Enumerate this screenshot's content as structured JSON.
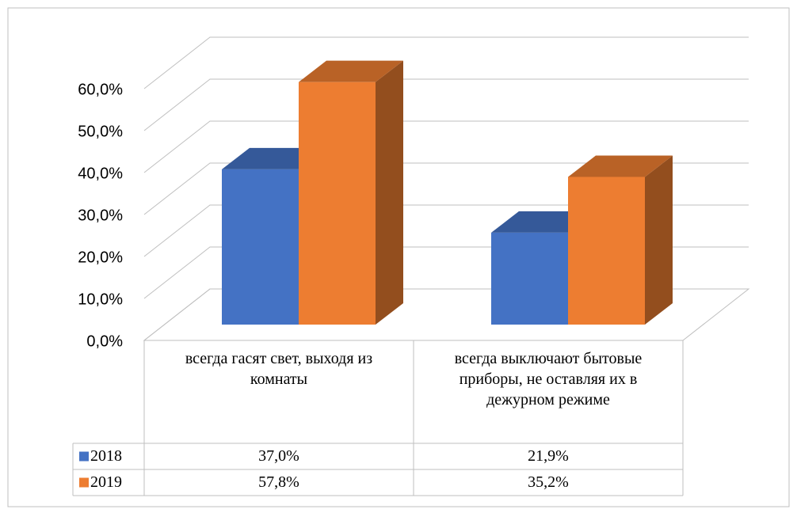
{
  "chart_data": {
    "type": "bar3d",
    "categories": [
      "всегда гасят свет, выходя из комнаты",
      "всегда выключают бытовые приборы, не оставляя их в дежурном режиме"
    ],
    "series": [
      {
        "name": "2018",
        "color": "#4472c4",
        "values": [
          37.0,
          21.9
        ],
        "value_labels": [
          "37,0%",
          "21,9%"
        ]
      },
      {
        "name": "2019",
        "color": "#ed7d31",
        "values": [
          57.8,
          35.2
        ],
        "value_labels": [
          "57,8%",
          "35,2%"
        ]
      }
    ],
    "ylim": [
      0,
      60
    ],
    "yticks": [
      {
        "value": 0,
        "label": "0,0%"
      },
      {
        "value": 10,
        "label": "10,0%"
      },
      {
        "value": 20,
        "label": "20,0%"
      },
      {
        "value": 30,
        "label": "30,0%"
      },
      {
        "value": 40,
        "label": "40,0%"
      },
      {
        "value": 50,
        "label": "50,0%"
      },
      {
        "value": 60,
        "label": "60,0%"
      }
    ],
    "grid": true
  }
}
